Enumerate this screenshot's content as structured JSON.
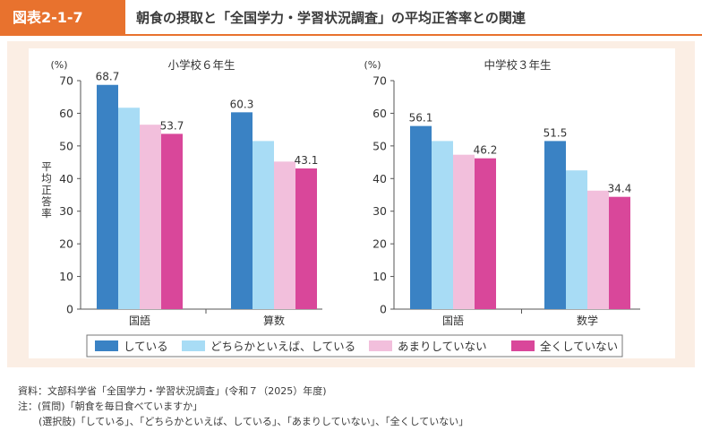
{
  "header": {
    "figure_label": "図表2-1-7",
    "title": "朝食の摂取と「全国学力・学習状況調査」の平均正答率との関連"
  },
  "colors": {
    "header_accent": "#e8722e",
    "panel_background": "#fbeee4",
    "series": [
      "#3a82c4",
      "#a8dcf5",
      "#f2bfdc",
      "#d9479a"
    ]
  },
  "chart_data": [
    {
      "type": "bar",
      "title": "小学校６年生",
      "ylabel": "平均正答率",
      "yunit": "(%)",
      "ylim": [
        0,
        70
      ],
      "yticks": [
        0,
        10,
        20,
        30,
        40,
        50,
        60,
        70
      ],
      "grid": false,
      "categories": [
        "国語",
        "算数"
      ],
      "series": [
        {
          "name": "している",
          "values": [
            68.7,
            60.3
          ],
          "labels": [
            "68.7",
            "60.3"
          ]
        },
        {
          "name": "どちらかといえば、している",
          "values": [
            61.7,
            51.5
          ],
          "labels": [
            "",
            ""
          ]
        },
        {
          "name": "あまりしていない",
          "values": [
            56.5,
            45.2
          ],
          "labels": [
            "",
            ""
          ]
        },
        {
          "name": "全くしていない",
          "values": [
            53.7,
            43.1
          ],
          "labels": [
            "53.7",
            "43.1"
          ]
        }
      ]
    },
    {
      "type": "bar",
      "title": "中学校３年生",
      "ylabel": "",
      "yunit": "(%)",
      "ylim": [
        0,
        70
      ],
      "yticks": [
        0,
        10,
        20,
        30,
        40,
        50,
        60,
        70
      ],
      "grid": false,
      "categories": [
        "国語",
        "数学"
      ],
      "series": [
        {
          "name": "している",
          "values": [
            56.1,
            51.5
          ],
          "labels": [
            "56.1",
            "51.5"
          ]
        },
        {
          "name": "どちらかといえば、している",
          "values": [
            51.5,
            42.5
          ],
          "labels": [
            "",
            ""
          ]
        },
        {
          "name": "あまりしていない",
          "values": [
            47.3,
            36.3
          ],
          "labels": [
            "",
            ""
          ]
        },
        {
          "name": "全くしていない",
          "values": [
            46.2,
            34.4
          ],
          "labels": [
            "46.2",
            "34.4"
          ]
        }
      ]
    }
  ],
  "legend": {
    "placement": "bottom",
    "items": [
      "している",
      "どちらかといえば、している",
      "あまりしていない",
      "全くしていない"
    ]
  },
  "notes": {
    "source": "資料：文部科学省「全国学力・学習状況調査」(令和７（2025）年度)",
    "note_question": "注：(質問)「朝食を毎日食べていますか」",
    "note_options": "(選択肢)「している」、「どちらかといえば、している」、「あまりしていない」、「全くしていない」"
  }
}
